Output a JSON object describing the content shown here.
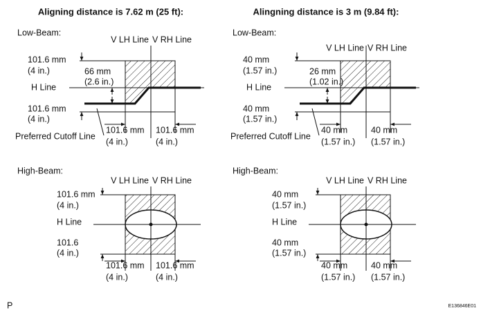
{
  "panels": [
    {
      "title": "Aligning distance is 7.62 m (25 ft):",
      "low_beam": {
        "label": "Low-Beam:",
        "v_lh": "V LH Line",
        "v_rh": "V RH Line",
        "h_line": "H Line",
        "top": [
          "101.6 mm",
          "(4 in.)"
        ],
        "bottom": [
          "101.6 mm",
          "(4 in.)"
        ],
        "offset": [
          "66 mm",
          "(2.6 in.)"
        ],
        "cutoff": "Preferred Cutoff Line",
        "left": [
          "101.6 mm",
          "(4 in.)"
        ],
        "right": [
          "101.6 mm",
          "(4 in.)"
        ]
      },
      "high_beam": {
        "label": "High-Beam:",
        "v_lh": "V LH Line",
        "v_rh": "V RH Line",
        "h_line": "H Line",
        "top": [
          "101.6 mm",
          "(4 in.)"
        ],
        "bottom": [
          "101.6",
          "(4 in.)"
        ],
        "left": [
          "101.6 mm",
          "(4 in.)"
        ],
        "right": [
          "101.6 mm",
          "(4 in.)"
        ]
      }
    },
    {
      "title": "Alingning distance is 3 m (9.84 ft):",
      "low_beam": {
        "label": "Low-Beam:",
        "v_lh": "V LH Line",
        "v_rh": "V RH Line",
        "h_line": "H Line",
        "top": [
          "40 mm",
          "(1.57 in.)"
        ],
        "bottom": [
          "40 mm",
          "(1.57 in.)"
        ],
        "offset": [
          "26 mm",
          "(1.02 in.)"
        ],
        "cutoff": "Preferred Cutoff Line",
        "left": [
          "40 mm",
          "(1.57 in.)"
        ],
        "right": [
          "40 mm",
          "(1.57 in.)"
        ]
      },
      "high_beam": {
        "label": "High-Beam:",
        "v_lh": "V LH Line",
        "v_rh": "V RH Line",
        "h_line": "H Line",
        "top": [
          "40 mm",
          "(1.57 in.)"
        ],
        "bottom": [
          "40 mm",
          "(1.57 in.)"
        ],
        "left": [
          "40 mm",
          "(1.57 in.)"
        ],
        "right": [
          "40 mm",
          "(1.57 in.)"
        ]
      }
    }
  ],
  "footer": {
    "left": "P",
    "right": "E136846E01"
  }
}
